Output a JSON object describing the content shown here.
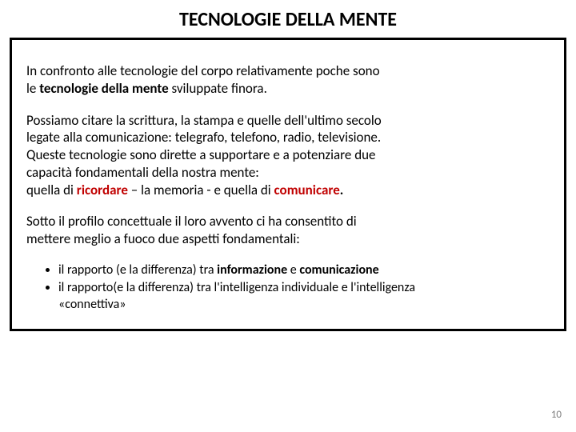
{
  "title": {
    "text": "TECNOLOGIE DELLA MENTE",
    "fontsize": 24,
    "color": "#000000",
    "weight": 700
  },
  "box": {
    "border_color": "#000000",
    "border_width": 3,
    "background": "#ffffff"
  },
  "body_fontsize": 17,
  "bullet_fontsize": 16,
  "pagenum_fontsize": 13,
  "para1": {
    "line1": "In confronto alle tecnologie del corpo relativamente poche sono",
    "line2a": "le ",
    "line2b_bold": "tecnologie della mente ",
    "line2c": "sviluppate finora."
  },
  "para2": {
    "l1": "Possiamo citare la scrittura, la stampa e quelle dell'ultimo secolo",
    "l2": "legate alla comunicazione: telegrafo, telefono, radio, televisione.",
    "l3": "Queste tecnologie sono dirette a supportare e a potenziare due",
    "l4": "capacità fondamentali della nostra mente:",
    "l5a": "quella di ",
    "l5b_red": "ricordare",
    "l5c": " – la memoria - e quella di ",
    "l5d_red": "comunicare",
    "l5e_bold": "."
  },
  "para3": {
    "l1": "Sotto il profilo concettuale il loro avvento ci ha consentito di",
    "l2": "mettere meglio a fuoco due aspetti fondamentali:"
  },
  "bullets": {
    "b1a": "  il rapporto (e la differenza) tra ",
    "b1b_bold": "informazione ",
    "b1c": "e ",
    "b1d_bold": "comunicazione",
    "b2a": " il rapporto(e la differenza) tra l'intelligenza individuale e l'intelligenza",
    "b2b": "«connettiva»"
  },
  "page_number": "10",
  "colors": {
    "text": "#000000",
    "red": "#c00000",
    "pagenum": "#7f7f7f",
    "background": "#ffffff"
  }
}
